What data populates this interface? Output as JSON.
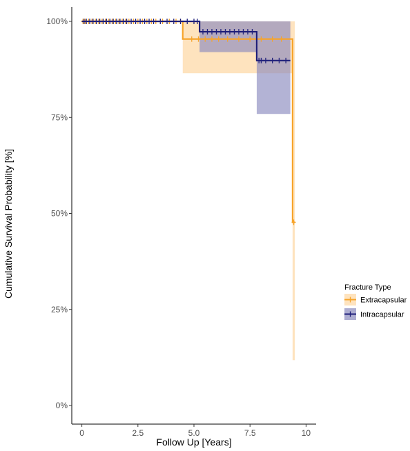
{
  "chart_data": {
    "type": "line",
    "subtype": "kaplan-meier step curve with confidence bands and censor marks",
    "title": "",
    "xlabel": "Follow Up [Years]",
    "ylabel": "Cumulative Survival Probability [%]",
    "xlim": [
      -0.45,
      10.45
    ],
    "ylim": [
      0,
      100
    ],
    "x_ticks": [
      0,
      2.5,
      5,
      7.5,
      10
    ],
    "x_tick_labels": [
      "0",
      "2.5",
      "5.0",
      "7.5",
      "10"
    ],
    "y_ticks": [
      0,
      25,
      50,
      75,
      100
    ],
    "y_tick_labels": [
      "0%",
      "25%",
      "50%",
      "75%",
      "100%"
    ],
    "grid": false,
    "legend": {
      "title": "Fracture Type",
      "placement": "right"
    },
    "series": [
      {
        "name": "Extracapsular",
        "color": "#f7a42a",
        "band_color": "#fdd9a8",
        "steps": [
          [
            0,
            100
          ],
          [
            4.5,
            95.4
          ],
          [
            9.4,
            47.7
          ],
          [
            9.5,
            47.7
          ]
        ],
        "ci_bands": [
          {
            "x": [
              0,
              4.5
            ],
            "lower": 100,
            "upper": 100
          },
          {
            "x": [
              4.5,
              9.4
            ],
            "lower": 86.5,
            "upper": 100
          },
          {
            "x": [
              9.4,
              9.5
            ],
            "lower": 11.8,
            "upper": 100
          }
        ],
        "censor_times": [
          0.05,
          0.15,
          0.3,
          0.45,
          0.6,
          0.75,
          0.9,
          1.05,
          1.2,
          1.35,
          1.5,
          1.65,
          1.8,
          1.95,
          2.1,
          2.3,
          2.5,
          2.7,
          2.9,
          3.1,
          3.3,
          3.6,
          3.9,
          4.2,
          4.4,
          4.9,
          5.2,
          5.5,
          5.8,
          6.1,
          6.5,
          7.0,
          7.5,
          8.0,
          8.5,
          8.9,
          9.45
        ]
      },
      {
        "name": "Intracapsular",
        "color": "#1f1f7a",
        "band_color": "#8a8abe",
        "steps": [
          [
            0,
            100
          ],
          [
            5.25,
            97.3
          ],
          [
            7.8,
            89.8
          ],
          [
            9.3,
            89.8
          ]
        ],
        "ci_bands": [
          {
            "x": [
              0,
              5.25
            ],
            "lower": 100,
            "upper": 100
          },
          {
            "x": [
              5.25,
              7.8
            ],
            "lower": 92.0,
            "upper": 100
          },
          {
            "x": [
              7.8,
              9.3
            ],
            "lower": 75.9,
            "upper": 100
          }
        ],
        "censor_times": [
          0.1,
          0.2,
          0.35,
          0.5,
          0.65,
          0.8,
          0.95,
          1.1,
          1.25,
          1.4,
          1.55,
          1.7,
          1.85,
          2.0,
          2.2,
          2.4,
          2.6,
          2.8,
          3.0,
          3.2,
          3.5,
          3.8,
          4.1,
          4.4,
          4.7,
          5.0,
          5.15,
          5.4,
          5.6,
          5.8,
          6.0,
          6.2,
          6.4,
          6.6,
          6.8,
          7.0,
          7.2,
          7.4,
          7.6,
          7.9,
          8.0,
          8.2,
          8.5,
          8.8,
          9.1
        ]
      }
    ]
  }
}
